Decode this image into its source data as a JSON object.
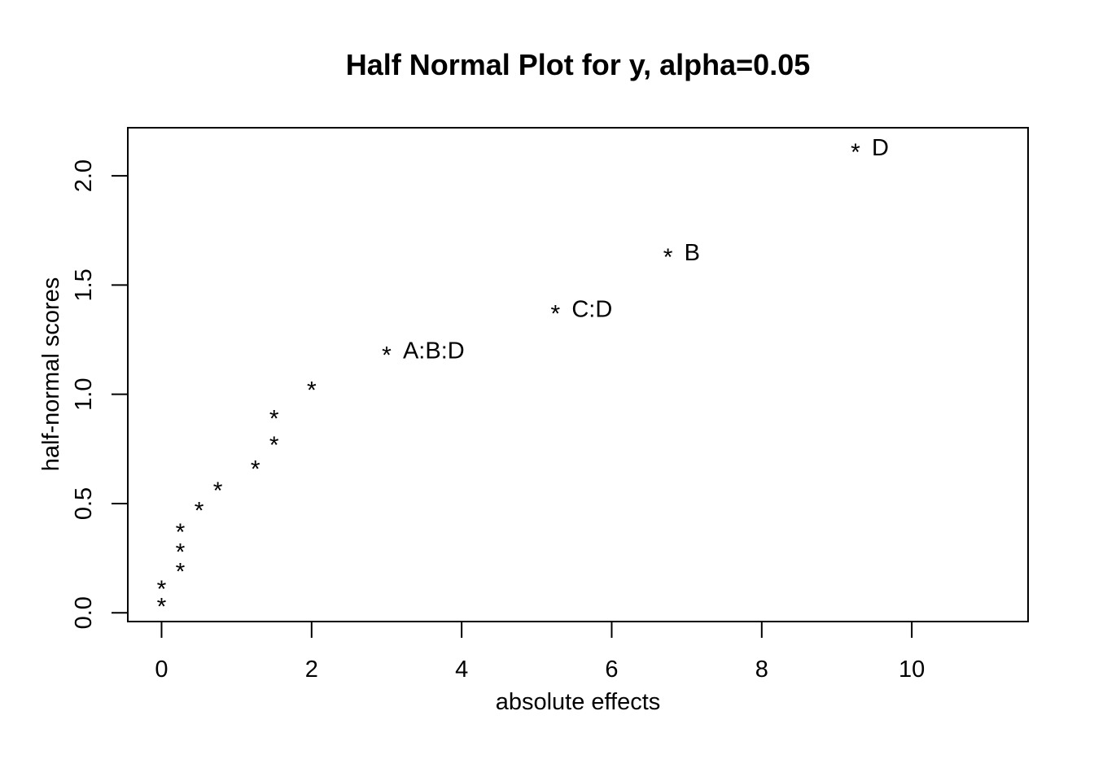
{
  "chart_data": {
    "type": "scatter",
    "title": "Half Normal Plot for y, alpha=0.05",
    "xlabel": "absolute effects",
    "ylabel": "half-normal scores",
    "xlim": [
      -0.45,
      11.55
    ],
    "ylim": [
      -0.04,
      2.22
    ],
    "x_ticks": [
      0,
      2,
      4,
      6,
      8,
      10
    ],
    "x_tick_labels": [
      "0",
      "2",
      "4",
      "6",
      "8",
      "10"
    ],
    "y_ticks": [
      0.0,
      0.5,
      1.0,
      1.5,
      2.0
    ],
    "y_tick_labels": [
      "0.0",
      "0.5",
      "1.0",
      "1.5",
      "2.0"
    ],
    "marker": "*",
    "grid": false,
    "points": [
      {
        "x": 0.0,
        "y": 0.04,
        "label": ""
      },
      {
        "x": 0.0,
        "y": 0.12,
        "label": ""
      },
      {
        "x": 0.25,
        "y": 0.2,
        "label": ""
      },
      {
        "x": 0.25,
        "y": 0.29,
        "label": ""
      },
      {
        "x": 0.25,
        "y": 0.38,
        "label": ""
      },
      {
        "x": 0.5,
        "y": 0.48,
        "label": ""
      },
      {
        "x": 0.75,
        "y": 0.57,
        "label": ""
      },
      {
        "x": 1.25,
        "y": 0.67,
        "label": ""
      },
      {
        "x": 1.5,
        "y": 0.78,
        "label": ""
      },
      {
        "x": 1.5,
        "y": 0.9,
        "label": ""
      },
      {
        "x": 2.0,
        "y": 1.03,
        "label": ""
      },
      {
        "x": 3.0,
        "y": 1.19,
        "label": "A:B:D"
      },
      {
        "x": 5.25,
        "y": 1.38,
        "label": "C:D"
      },
      {
        "x": 6.75,
        "y": 1.64,
        "label": "B"
      },
      {
        "x": 9.25,
        "y": 2.12,
        "label": "D"
      }
    ]
  }
}
